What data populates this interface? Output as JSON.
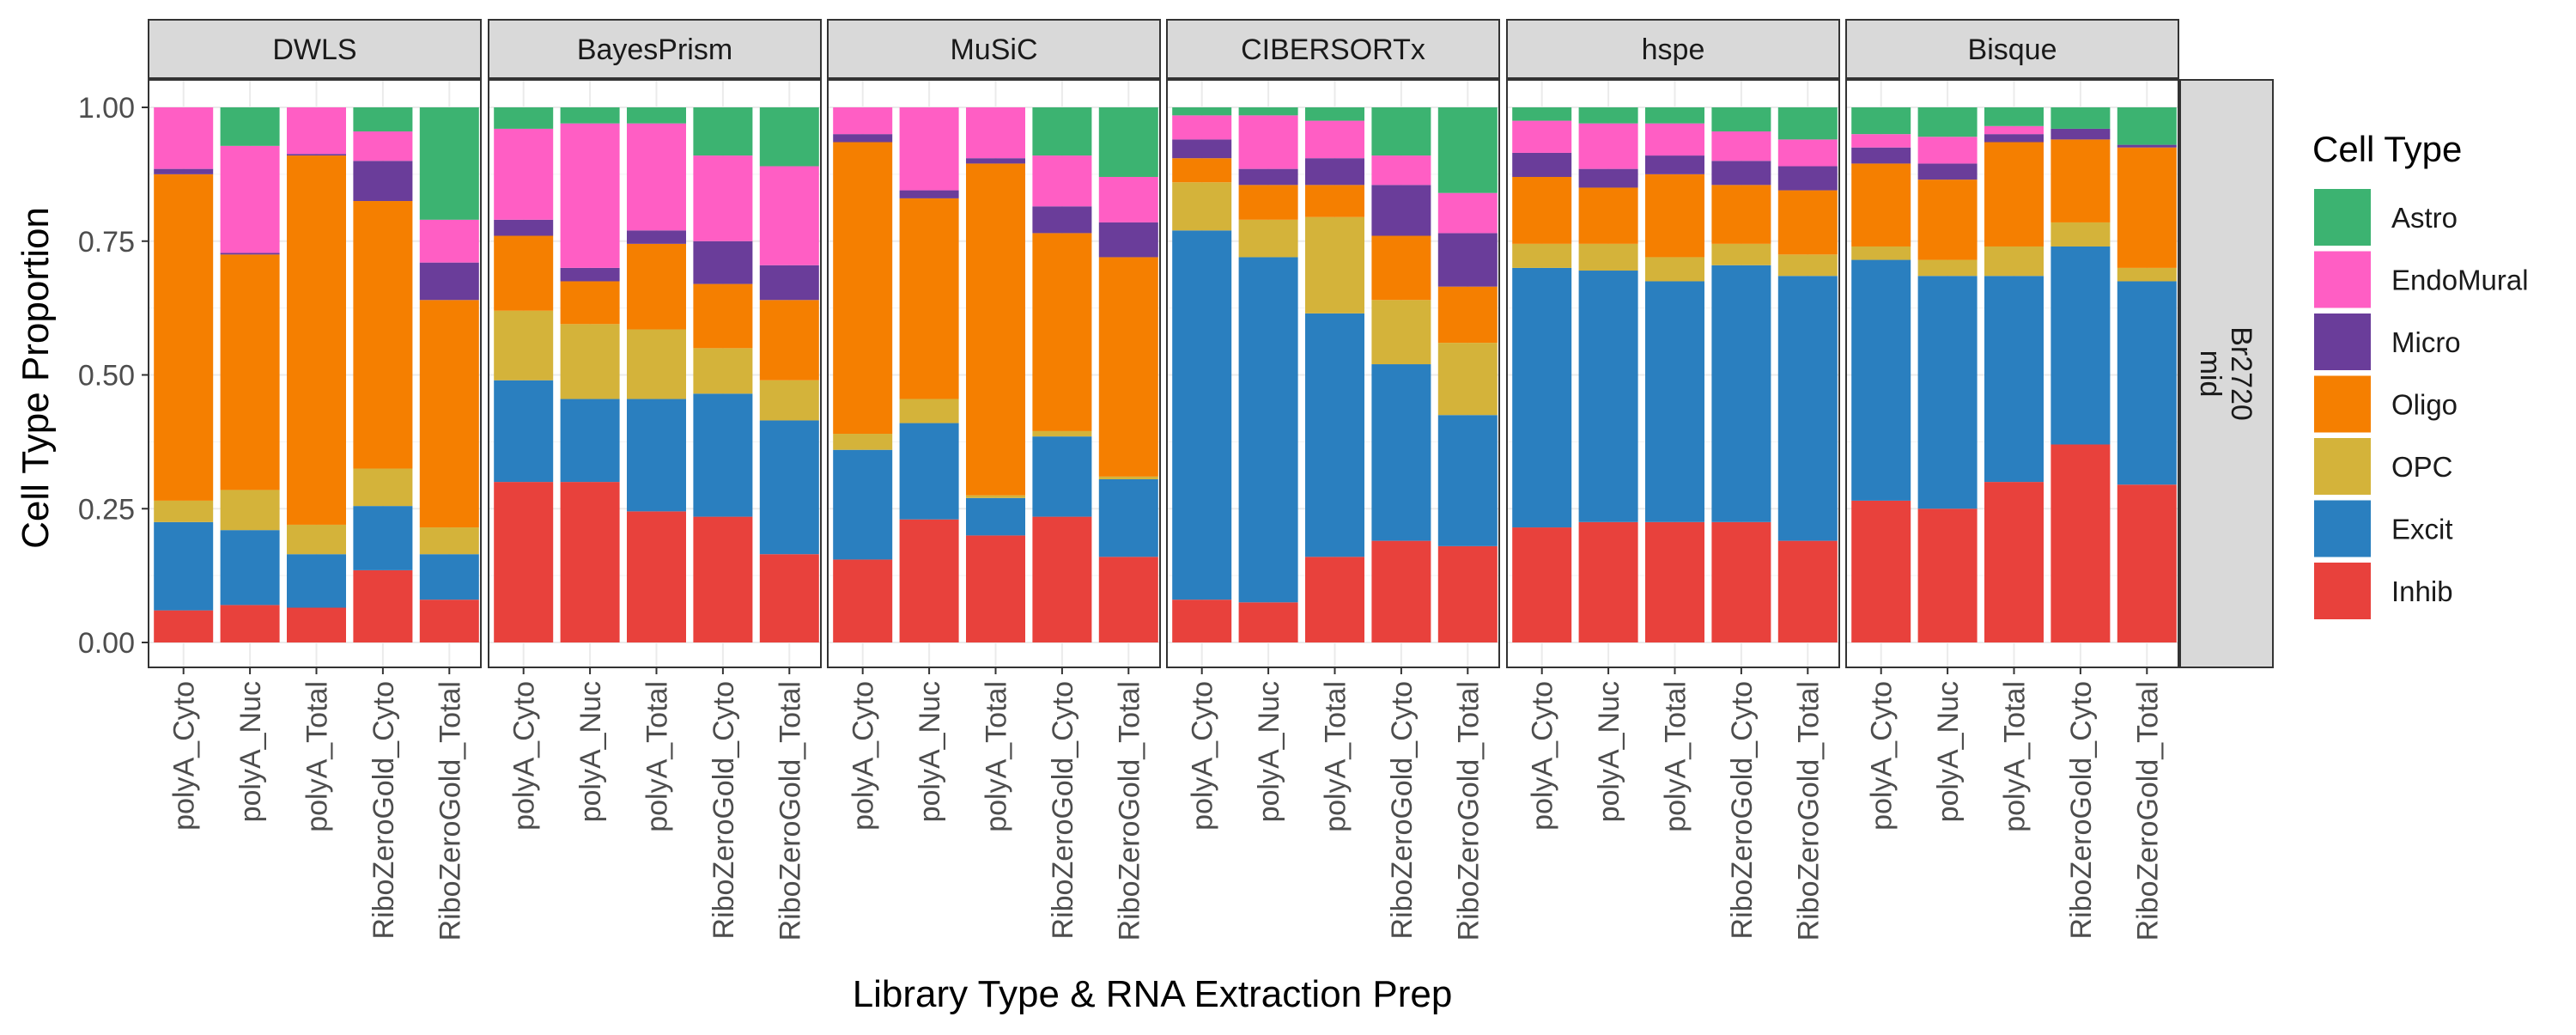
{
  "colors": {
    "Astro": "#3cb371",
    "EndoMural": "#ff5ec4",
    "Micro": "#6a3d9a",
    "Oligo": "#f57f00",
    "OPC": "#d4b33a",
    "Excit": "#2a7fbf",
    "Inhib": "#e8413c"
  },
  "chart_data": {
    "type": "bar",
    "stacked": true,
    "xlabel": "Library Type & RNA Extraction Prep",
    "ylabel": "Cell Type Proportion",
    "ylim": [
      0,
      1
    ],
    "yticks": [
      0,
      0.25,
      0.5,
      0.75,
      1
    ],
    "ytick_labels": [
      "0.00",
      "0.25",
      "0.50",
      "0.75",
      "1.00"
    ],
    "row_strip": [
      "Br2720",
      "mid"
    ],
    "grid": true,
    "legend": {
      "title": "Cell Type",
      "position": "right",
      "entries": [
        "Astro",
        "EndoMural",
        "Micro",
        "Oligo",
        "OPC",
        "Excit",
        "Inhib"
      ]
    },
    "stack_order_bottom_to_top": [
      "Inhib",
      "Excit",
      "OPC",
      "Oligo",
      "Micro",
      "EndoMural",
      "Astro"
    ],
    "categories": [
      "polyA_Cyto",
      "polyA_Nuc",
      "polyA_Total",
      "RiboZeroGold_Cyto",
      "RiboZeroGold_Total"
    ],
    "panels": [
      {
        "name": "DWLS",
        "bars": [
          {
            "Inhib": 0.06,
            "Excit": 0.165,
            "OPC": 0.04,
            "Oligo": 0.61,
            "Micro": 0.01,
            "EndoMural": 0.115,
            "Astro": 0.0
          },
          {
            "Inhib": 0.07,
            "Excit": 0.14,
            "OPC": 0.075,
            "Oligo": 0.44,
            "Micro": 0.003,
            "EndoMural": 0.2,
            "Astro": 0.072
          },
          {
            "Inhib": 0.065,
            "Excit": 0.1,
            "OPC": 0.055,
            "Oligo": 0.69,
            "Micro": 0.003,
            "EndoMural": 0.087,
            "Astro": 0.0
          },
          {
            "Inhib": 0.135,
            "Excit": 0.12,
            "OPC": 0.07,
            "Oligo": 0.5,
            "Micro": 0.075,
            "EndoMural": 0.055,
            "Astro": 0.045
          },
          {
            "Inhib": 0.08,
            "Excit": 0.085,
            "OPC": 0.05,
            "Oligo": 0.425,
            "Micro": 0.07,
            "EndoMural": 0.08,
            "Astro": 0.21
          }
        ]
      },
      {
        "name": "BayesPrism",
        "bars": [
          {
            "Inhib": 0.3,
            "Excit": 0.19,
            "OPC": 0.13,
            "Oligo": 0.14,
            "Micro": 0.03,
            "EndoMural": 0.17,
            "Astro": 0.04
          },
          {
            "Inhib": 0.3,
            "Excit": 0.155,
            "OPC": 0.14,
            "Oligo": 0.08,
            "Micro": 0.025,
            "EndoMural": 0.27,
            "Astro": 0.03
          },
          {
            "Inhib": 0.245,
            "Excit": 0.21,
            "OPC": 0.13,
            "Oligo": 0.16,
            "Micro": 0.025,
            "EndoMural": 0.2,
            "Astro": 0.03
          },
          {
            "Inhib": 0.235,
            "Excit": 0.23,
            "OPC": 0.085,
            "Oligo": 0.12,
            "Micro": 0.08,
            "EndoMural": 0.16,
            "Astro": 0.09
          },
          {
            "Inhib": 0.165,
            "Excit": 0.25,
            "OPC": 0.075,
            "Oligo": 0.15,
            "Micro": 0.065,
            "EndoMural": 0.185,
            "Astro": 0.11
          }
        ]
      },
      {
        "name": "MuSiC",
        "bars": [
          {
            "Inhib": 0.155,
            "Excit": 0.205,
            "OPC": 0.03,
            "Oligo": 0.545,
            "Micro": 0.015,
            "EndoMural": 0.05,
            "Astro": 0.0
          },
          {
            "Inhib": 0.23,
            "Excit": 0.18,
            "OPC": 0.045,
            "Oligo": 0.375,
            "Micro": 0.015,
            "EndoMural": 0.155,
            "Astro": 0.0
          },
          {
            "Inhib": 0.2,
            "Excit": 0.07,
            "OPC": 0.005,
            "Oligo": 0.62,
            "Micro": 0.01,
            "EndoMural": 0.095,
            "Astro": 0.0
          },
          {
            "Inhib": 0.235,
            "Excit": 0.15,
            "OPC": 0.01,
            "Oligo": 0.37,
            "Micro": 0.05,
            "EndoMural": 0.095,
            "Astro": 0.09
          },
          {
            "Inhib": 0.16,
            "Excit": 0.145,
            "OPC": 0.005,
            "Oligo": 0.41,
            "Micro": 0.065,
            "EndoMural": 0.085,
            "Astro": 0.13
          }
        ]
      },
      {
        "name": "CIBERSORTx",
        "bars": [
          {
            "Inhib": 0.08,
            "Excit": 0.69,
            "OPC": 0.09,
            "Oligo": 0.045,
            "Micro": 0.035,
            "EndoMural": 0.045,
            "Astro": 0.015
          },
          {
            "Inhib": 0.075,
            "Excit": 0.645,
            "OPC": 0.07,
            "Oligo": 0.065,
            "Micro": 0.03,
            "EndoMural": 0.1,
            "Astro": 0.015
          },
          {
            "Inhib": 0.16,
            "Excit": 0.455,
            "OPC": 0.18,
            "Oligo": 0.06,
            "Micro": 0.05,
            "EndoMural": 0.07,
            "Astro": 0.025
          },
          {
            "Inhib": 0.19,
            "Excit": 0.33,
            "OPC": 0.12,
            "Oligo": 0.12,
            "Micro": 0.095,
            "EndoMural": 0.055,
            "Astro": 0.09
          },
          {
            "Inhib": 0.18,
            "Excit": 0.245,
            "OPC": 0.135,
            "Oligo": 0.105,
            "Micro": 0.1,
            "EndoMural": 0.075,
            "Astro": 0.16
          }
        ]
      },
      {
        "name": "hspe",
        "bars": [
          {
            "Inhib": 0.215,
            "Excit": 0.485,
            "OPC": 0.045,
            "Oligo": 0.125,
            "Micro": 0.045,
            "EndoMural": 0.06,
            "Astro": 0.025
          },
          {
            "Inhib": 0.225,
            "Excit": 0.47,
            "OPC": 0.05,
            "Oligo": 0.105,
            "Micro": 0.035,
            "EndoMural": 0.085,
            "Astro": 0.03
          },
          {
            "Inhib": 0.225,
            "Excit": 0.45,
            "OPC": 0.045,
            "Oligo": 0.155,
            "Micro": 0.035,
            "EndoMural": 0.06,
            "Astro": 0.03
          },
          {
            "Inhib": 0.225,
            "Excit": 0.48,
            "OPC": 0.04,
            "Oligo": 0.11,
            "Micro": 0.045,
            "EndoMural": 0.055,
            "Astro": 0.045
          },
          {
            "Inhib": 0.19,
            "Excit": 0.495,
            "OPC": 0.04,
            "Oligo": 0.12,
            "Micro": 0.045,
            "EndoMural": 0.05,
            "Astro": 0.06
          }
        ]
      },
      {
        "name": "Bisque",
        "bars": [
          {
            "Inhib": 0.265,
            "Excit": 0.45,
            "OPC": 0.025,
            "Oligo": 0.155,
            "Micro": 0.03,
            "EndoMural": 0.025,
            "Astro": 0.05
          },
          {
            "Inhib": 0.25,
            "Excit": 0.435,
            "OPC": 0.03,
            "Oligo": 0.15,
            "Micro": 0.03,
            "EndoMural": 0.05,
            "Astro": 0.055
          },
          {
            "Inhib": 0.3,
            "Excit": 0.385,
            "OPC": 0.055,
            "Oligo": 0.195,
            "Micro": 0.015,
            "EndoMural": 0.015,
            "Astro": 0.035
          },
          {
            "Inhib": 0.37,
            "Excit": 0.37,
            "OPC": 0.045,
            "Oligo": 0.155,
            "Micro": 0.02,
            "EndoMural": 0.0,
            "Astro": 0.04
          },
          {
            "Inhib": 0.295,
            "Excit": 0.38,
            "OPC": 0.025,
            "Oligo": 0.225,
            "Micro": 0.005,
            "EndoMural": 0.0,
            "Astro": 0.07
          }
        ]
      }
    ]
  }
}
